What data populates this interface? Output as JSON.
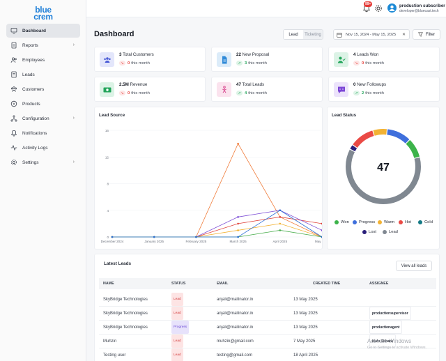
{
  "app": {
    "logo_line1": "blue",
    "logo_line2": "crem"
  },
  "sidebar": {
    "items": [
      {
        "label": "Dashboard",
        "icon": "monitor-icon",
        "active": true,
        "has_children": false
      },
      {
        "label": "Reports",
        "icon": "report-icon",
        "active": false,
        "has_children": true
      },
      {
        "label": "Employees",
        "icon": "users-icon",
        "active": false,
        "has_children": false
      },
      {
        "label": "Leads",
        "icon": "leads-icon",
        "active": false,
        "has_children": false
      },
      {
        "label": "Customers",
        "icon": "customers-icon",
        "active": false,
        "has_children": false
      },
      {
        "label": "Products",
        "icon": "products-icon",
        "active": false,
        "has_children": false
      },
      {
        "label": "Configuration",
        "icon": "configuration-icon",
        "active": false,
        "has_children": true
      },
      {
        "label": "Notifications",
        "icon": "bell-icon",
        "active": false,
        "has_children": false
      },
      {
        "label": "Activity Logs",
        "icon": "activity-icon",
        "active": false,
        "has_children": false
      },
      {
        "label": "Settings",
        "icon": "gear-icon",
        "active": false,
        "has_children": true
      }
    ]
  },
  "topbar": {
    "notification_count": "99+",
    "user_name": "production subscriber",
    "user_email": "developer@bluecast.tech"
  },
  "header": {
    "title": "Dashboard",
    "toggle": {
      "lead": "Lead",
      "ticketing": "Ticketing"
    },
    "date_range": "Nov 15, 2024 - May 15, 2025",
    "filter_label": "Filter"
  },
  "stats": [
    {
      "value": "3",
      "label": "Total Customers",
      "change": "0",
      "suffix": "this month",
      "trend": "down",
      "icon": "group-icon",
      "icon_bg": "#e3e6fb",
      "icon_color": "#4a5bd6"
    },
    {
      "value": "22",
      "label": "New Proposal",
      "change": "3",
      "suffix": "this month",
      "trend": "up",
      "icon": "document-icon",
      "icon_bg": "#dcecf9",
      "icon_color": "#2f8ad8"
    },
    {
      "value": "4",
      "label": "Leads Won",
      "change": "0",
      "suffix": "this month",
      "trend": "down",
      "icon": "user-check-icon",
      "icon_bg": "#dcf3e6",
      "icon_color": "#22a55a"
    },
    {
      "value": "2.5M",
      "label": "Revenue",
      "change": "0",
      "suffix": "this month",
      "trend": "down",
      "icon": "money-icon",
      "icon_bg": "#dcf3e6",
      "icon_color": "#22a55a"
    },
    {
      "value": "47",
      "label": "Total Leads",
      "change": "4",
      "suffix": "this month",
      "trend": "up",
      "icon": "people-icon",
      "icon_bg": "#fbe3ee",
      "icon_color": "#d6408a"
    },
    {
      "value": "0",
      "label": "New Followups",
      "change": "2",
      "suffix": "this month",
      "trend": "up",
      "icon": "chat-icon",
      "icon_bg": "#ece3fb",
      "icon_color": "#7b45d6"
    }
  ],
  "lead_source": {
    "title": "Lead Source"
  },
  "chart_data": [
    {
      "type": "line",
      "title": "Lead Source",
      "x": [
        "December 2024",
        "January 2025",
        "February 2025",
        "March 2025",
        "April 2025",
        "May 2025"
      ],
      "ylim": [
        0,
        16
      ],
      "yticks": [
        0,
        4,
        8,
        12,
        16
      ],
      "grid": true,
      "series": [
        {
          "color": "#f07c3a",
          "values": [
            0,
            0,
            0,
            14,
            3,
            0
          ]
        },
        {
          "color": "#e0443e",
          "values": [
            0,
            0,
            0,
            2,
            3,
            2
          ]
        },
        {
          "color": "#7e4fd6",
          "values": [
            0,
            0,
            0,
            3,
            4,
            1
          ]
        },
        {
          "color": "#f2b233",
          "values": [
            0,
            0,
            0,
            1,
            2,
            0
          ]
        },
        {
          "color": "#4caf50",
          "values": [
            0,
            0,
            0,
            0,
            1,
            0
          ]
        },
        {
          "color": "#2c6fd6",
          "values": [
            0,
            0,
            0,
            0,
            4,
            0
          ]
        }
      ]
    },
    {
      "type": "pie",
      "title": "Lead Status",
      "center_value": "47",
      "categories": [
        "Won",
        "Progress",
        "Warm",
        "Hot",
        "Cold",
        "Lost",
        "Lead"
      ],
      "colors": [
        "#3cb34a",
        "#3f6fdc",
        "#f2b233",
        "#ea4a45",
        "#157a85",
        "#2a1f7a",
        "#808891"
      ],
      "values": [
        4,
        5,
        3,
        5,
        0,
        1,
        29
      ],
      "legend": "bottom"
    }
  ],
  "lead_status": {
    "title": "Lead Status",
    "center_value": "47",
    "legend": [
      {
        "label": "Won",
        "color": "#3cb34a"
      },
      {
        "label": "Progress",
        "color": "#3f6fdc"
      },
      {
        "label": "Warm",
        "color": "#f2b233"
      },
      {
        "label": "Hot",
        "color": "#ea4a45"
      },
      {
        "label": "Cold",
        "color": "#157a85"
      },
      {
        "label": "Lost",
        "color": "#2a1f7a"
      },
      {
        "label": "Lead",
        "color": "#808891"
      }
    ]
  },
  "latest_leads": {
    "title": "Latest Leads",
    "view_all": "View all leads",
    "columns": [
      "NAME",
      "STATUS",
      "EMAIL",
      "CREATED TIME",
      "ASSIGNEE"
    ],
    "rows": [
      {
        "name": "SkyBridge Technologies",
        "status": "Lead",
        "email": "anjali@mailinator.in",
        "created": "13 May 2025",
        "assignee": ""
      },
      {
        "name": "SkyBridge Technologies",
        "status": "Lead",
        "email": "anjali@mailinator.in",
        "created": "13 May 2025",
        "assignee": "productionsupervisor"
      },
      {
        "name": "SkyBridge Technologies",
        "status": "Progress",
        "email": "anjali@mailinator.in",
        "created": "13 May 2025",
        "assignee": "productionagent"
      },
      {
        "name": "Muhzin",
        "status": "Lead",
        "email": "muhzin@gmail.com",
        "created": "7 May 2025",
        "assignee": "Malu Sithara"
      },
      {
        "name": "Testing user",
        "status": "Lead",
        "email": "testing@gmail.com",
        "created": "18 April 2025",
        "assignee": ""
      }
    ]
  },
  "watermark": {
    "line1": "Activate Windows",
    "line2": "Go to Settings to activate Windows."
  }
}
